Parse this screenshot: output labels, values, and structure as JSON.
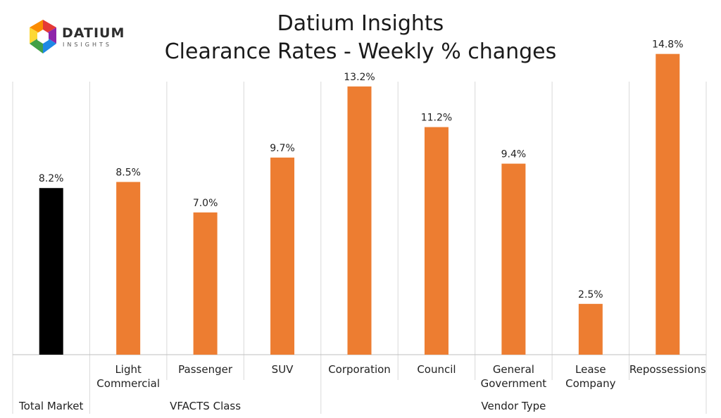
{
  "logo": {
    "word": "DATIUM",
    "sub": "INSIGHTS"
  },
  "chart_data": {
    "type": "bar",
    "title": "Datium Insights",
    "subtitle": "Clearance Rates - Weekly % changes",
    "categories": [
      "Total Market",
      "Light Commercial",
      "Passenger",
      "SUV",
      "Corporation",
      "Council",
      "General Government",
      "Lease Company",
      "Repossessions"
    ],
    "category_lines": [
      [
        "Total Market"
      ],
      [
        "Light",
        "Commercial"
      ],
      [
        "Passenger"
      ],
      [
        "SUV"
      ],
      [
        "Corporation"
      ],
      [
        "Council"
      ],
      [
        "General",
        "Government"
      ],
      [
        "Lease",
        "Company"
      ],
      [
        "Repossessions"
      ]
    ],
    "values": [
      8.2,
      8.5,
      7.0,
      9.7,
      13.2,
      11.2,
      9.4,
      2.5,
      14.8
    ],
    "data_labels": [
      "8.2%",
      "8.5%",
      "7.0%",
      "9.7%",
      "13.2%",
      "11.2%",
      "9.4%",
      "2.5%",
      "14.8%"
    ],
    "groups": [
      {
        "label": "Total Market",
        "start": 0,
        "end": 0
      },
      {
        "label": "VFACTS Class",
        "start": 1,
        "end": 3
      },
      {
        "label": "Vendor Type",
        "start": 4,
        "end": 8
      }
    ],
    "ylim": [
      0,
      16
    ],
    "bar_colors": [
      "#000000",
      "#ed7d31",
      "#ed7d31",
      "#ed7d31",
      "#ed7d31",
      "#ed7d31",
      "#ed7d31",
      "#ed7d31",
      "#ed7d31"
    ],
    "grid": false,
    "legend": "none"
  }
}
